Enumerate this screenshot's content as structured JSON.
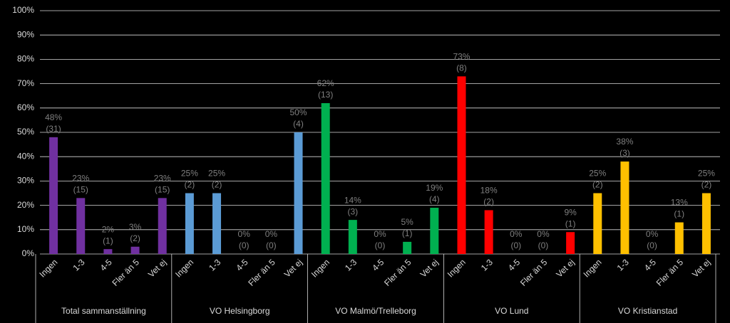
{
  "chart_data": {
    "type": "bar",
    "categories": [
      "Ingen",
      "1-3",
      "4-5",
      "Fler än 5",
      "Vet ej"
    ],
    "ylim": [
      0,
      100
    ],
    "yticks": [
      {
        "value": 0,
        "label": "0%"
      },
      {
        "value": 10,
        "label": "10%"
      },
      {
        "value": 20,
        "label": "20%"
      },
      {
        "value": 30,
        "label": "30%"
      },
      {
        "value": 40,
        "label": "40%"
      },
      {
        "value": 50,
        "label": "50%"
      },
      {
        "value": 60,
        "label": "60%"
      },
      {
        "value": 70,
        "label": "70%"
      },
      {
        "value": 80,
        "label": "80%"
      },
      {
        "value": 90,
        "label": "90%"
      },
      {
        "value": 100,
        "label": "100%"
      }
    ],
    "grid": true,
    "series": [
      {
        "name": "Total sammanställning",
        "color": "#7030a0",
        "values": [
          48,
          23,
          2,
          3,
          23
        ],
        "value_labels": [
          "48%",
          "23%",
          "2%",
          "3%",
          "23%"
        ],
        "count_labels": [
          "(31)",
          "(15)",
          "(1)",
          "(2)",
          "(15)"
        ]
      },
      {
        "name": "VO Helsingborg",
        "color": "#5b9bd5",
        "values": [
          25,
          25,
          0,
          0,
          50
        ],
        "value_labels": [
          "25%",
          "25%",
          "0%",
          "0%",
          "50%"
        ],
        "count_labels": [
          "(2)",
          "(2)",
          "(0)",
          "(0)",
          "(4)"
        ]
      },
      {
        "name": "VO Malmö/Trelleborg",
        "color": "#00b050",
        "values": [
          62,
          14,
          0,
          5,
          19
        ],
        "value_labels": [
          "62%",
          "14%",
          "0%",
          "5%",
          "19%"
        ],
        "count_labels": [
          "(13)",
          "(3)",
          "(0)",
          "(1)",
          "(4)"
        ]
      },
      {
        "name": "VO Lund",
        "color": "#ff0000",
        "values": [
          73,
          18,
          0,
          0,
          9
        ],
        "value_labels": [
          "73%",
          "18%",
          "0%",
          "0%",
          "9%"
        ],
        "count_labels": [
          "(8)",
          "(2)",
          "(0)",
          "(0)",
          "(1)"
        ]
      },
      {
        "name": "VO Kristianstad",
        "color": "#ffc000",
        "values": [
          25,
          38,
          0,
          13,
          25
        ],
        "value_labels": [
          "25%",
          "38%",
          "0%",
          "13%",
          "25%"
        ],
        "count_labels": [
          "(2)",
          "(3)",
          "(0)",
          "(1)",
          "(2)"
        ]
      }
    ]
  }
}
